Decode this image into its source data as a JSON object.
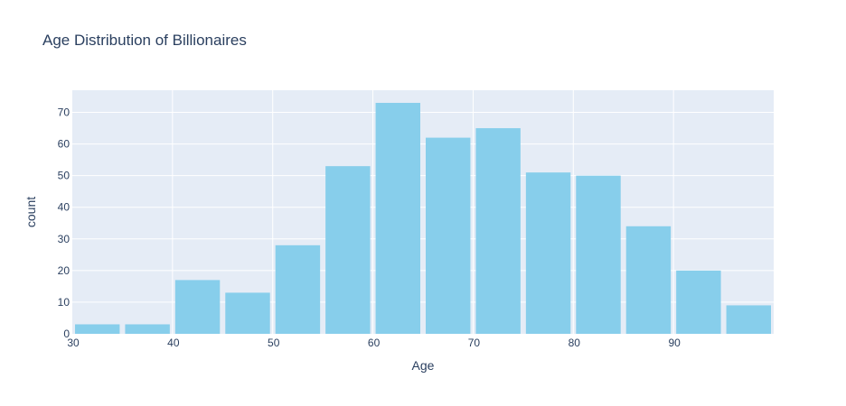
{
  "chart_data": {
    "type": "bar",
    "title": "Age Distribution of Billionaires",
    "xlabel": "Age",
    "ylabel": "count",
    "bin_size": 5,
    "bins": [
      {
        "start": 30,
        "end": 35,
        "count": 3
      },
      {
        "start": 35,
        "end": 40,
        "count": 3
      },
      {
        "start": 40,
        "end": 45,
        "count": 17
      },
      {
        "start": 45,
        "end": 50,
        "count": 13
      },
      {
        "start": 50,
        "end": 55,
        "count": 28
      },
      {
        "start": 55,
        "end": 60,
        "count": 53
      },
      {
        "start": 60,
        "end": 65,
        "count": 73
      },
      {
        "start": 65,
        "end": 70,
        "count": 62
      },
      {
        "start": 70,
        "end": 75,
        "count": 65
      },
      {
        "start": 75,
        "end": 80,
        "count": 51
      },
      {
        "start": 80,
        "end": 85,
        "count": 50
      },
      {
        "start": 85,
        "end": 90,
        "count": 34
      },
      {
        "start": 90,
        "end": 95,
        "count": 20
      },
      {
        "start": 95,
        "end": 100,
        "count": 9
      }
    ],
    "xlim": [
      30,
      100
    ],
    "ylim": [
      0,
      77
    ],
    "x_ticks": [
      30,
      40,
      50,
      60,
      70,
      80,
      90
    ],
    "y_ticks": [
      0,
      10,
      20,
      30,
      40,
      50,
      60,
      70
    ],
    "bar_color": "#87ceeb",
    "plot_background": "#e5ecf6",
    "grid": true,
    "legend": "none"
  }
}
